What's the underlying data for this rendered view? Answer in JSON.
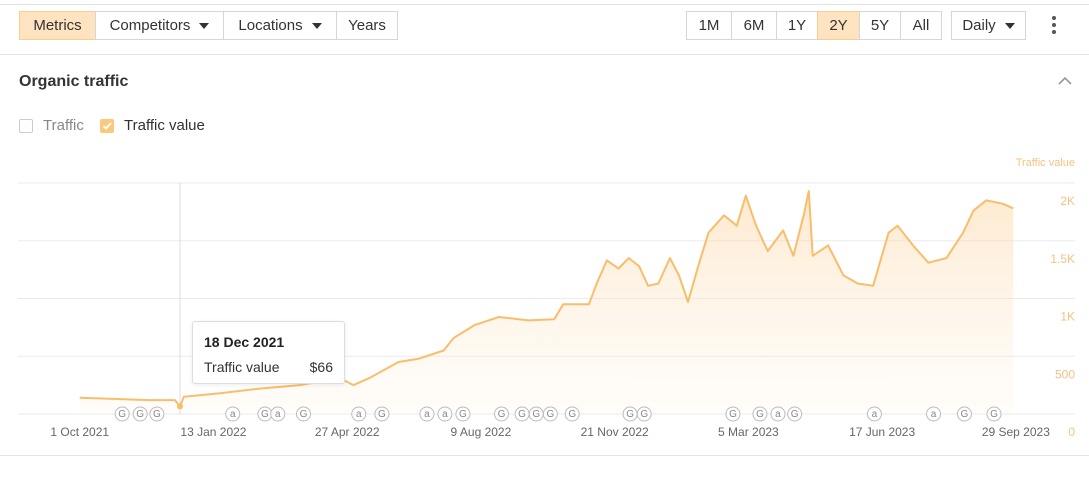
{
  "toolbar": {
    "tabs": [
      {
        "label": "Metrics",
        "active": true,
        "dropdown": false
      },
      {
        "label": "Competitors",
        "active": false,
        "dropdown": true
      },
      {
        "label": "Locations",
        "active": false,
        "dropdown": true
      },
      {
        "label": "Years",
        "active": false,
        "dropdown": false
      }
    ],
    "ranges": [
      {
        "label": "1M",
        "active": false
      },
      {
        "label": "6M",
        "active": false
      },
      {
        "label": "1Y",
        "active": false
      },
      {
        "label": "2Y",
        "active": true
      },
      {
        "label": "5Y",
        "active": false
      },
      {
        "label": "All",
        "active": false
      }
    ],
    "interval": "Daily"
  },
  "section": {
    "title": "Organic traffic"
  },
  "legend": [
    {
      "label": "Traffic",
      "checked": false
    },
    {
      "label": "Traffic value",
      "checked": true
    }
  ],
  "chart_data": {
    "type": "line",
    "y_axis_label": "Traffic value",
    "x": [
      "2021-10-01",
      "2021-11-24",
      "2021-12-14",
      "2021-12-18",
      "2021-12-21",
      "2022-01-18",
      "2022-02-18",
      "2022-03-21",
      "2022-04-21",
      "2022-05-02",
      "2022-05-14",
      "2022-06-06",
      "2022-06-22",
      "2022-07-11",
      "2022-07-19",
      "2022-08-04",
      "2022-08-23",
      "2022-09-15",
      "2022-10-05",
      "2022-10-12",
      "2022-11-01",
      "2022-11-07",
      "2022-11-15",
      "2022-11-24",
      "2022-12-02",
      "2022-12-10",
      "2022-12-17",
      "2022-12-25",
      "2023-01-03",
      "2023-01-10",
      "2023-01-17",
      "2023-01-25",
      "2023-02-02",
      "2023-02-14",
      "2023-02-24",
      "2023-03-03",
      "2023-03-11",
      "2023-03-20",
      "2023-04-01",
      "2023-04-09",
      "2023-04-17",
      "2023-04-21",
      "2023-04-24",
      "2023-05-06",
      "2023-05-18",
      "2023-05-29",
      "2023-06-10",
      "2023-06-22",
      "2023-06-29",
      "2023-07-11",
      "2023-07-23",
      "2023-08-06",
      "2023-08-19",
      "2023-08-27",
      "2023-09-06",
      "2023-09-19",
      "2023-09-27"
    ],
    "series": [
      {
        "name": "Traffic value",
        "color": "#f9bd6c",
        "values": [
          140,
          120,
          120,
          66,
          150,
          180,
          220,
          250,
          310,
          250,
          310,
          450,
          480,
          550,
          660,
          770,
          840,
          810,
          820,
          950,
          950,
          1130,
          1330,
          1260,
          1350,
          1280,
          1110,
          1130,
          1350,
          1200,
          970,
          1280,
          1570,
          1720,
          1630,
          1890,
          1630,
          1410,
          1590,
          1370,
          1720,
          1930,
          1370,
          1460,
          1200,
          1130,
          1110,
          1570,
          1630,
          1460,
          1310,
          1350,
          1570,
          1760,
          1850,
          1820,
          1780
        ]
      }
    ],
    "xlim": [
      "2021-08-14",
      "2023-10-10"
    ],
    "xticks": [
      {
        "value": "2021-10-01",
        "label": "1 Oct 2021"
      },
      {
        "value": "2022-01-13",
        "label": "13 Jan 2022"
      },
      {
        "value": "2022-04-27",
        "label": "27 Apr 2022"
      },
      {
        "value": "2022-08-09",
        "label": "9 Aug 2022"
      },
      {
        "value": "2022-11-21",
        "label": "21 Nov 2022"
      },
      {
        "value": "2023-03-05",
        "label": "5 Mar 2023"
      },
      {
        "value": "2023-06-17",
        "label": "17 Jun 2023"
      },
      {
        "value": "2023-09-29",
        "label": "29 Sep 2023"
      }
    ],
    "ylim": [
      0,
      2000
    ],
    "yticks": [
      0,
      500,
      {
        "value": 1000,
        "label": "1K"
      },
      {
        "value": 1500,
        "label": "1.5K"
      },
      {
        "value": 2000,
        "label": "2K"
      }
    ],
    "grid": true,
    "markers": [
      {
        "label": "G",
        "x": "2021-11-03"
      },
      {
        "label": "G",
        "x": "2021-11-17"
      },
      {
        "label": "G",
        "x": "2021-11-30"
      },
      {
        "label": "a",
        "x": "2022-01-28"
      },
      {
        "label": "G",
        "x": "2022-02-22"
      },
      {
        "label": "a",
        "x": "2022-03-04"
      },
      {
        "label": "G",
        "x": "2022-03-24"
      },
      {
        "label": "a",
        "x": "2022-05-06"
      },
      {
        "label": "G",
        "x": "2022-05-24"
      },
      {
        "label": "a",
        "x": "2022-06-28"
      },
      {
        "label": "a",
        "x": "2022-07-12"
      },
      {
        "label": "G",
        "x": "2022-07-26"
      },
      {
        "label": "G",
        "x": "2022-08-25"
      },
      {
        "label": "G",
        "x": "2022-09-10"
      },
      {
        "label": "G",
        "x": "2022-09-21"
      },
      {
        "label": "G",
        "x": "2022-10-02"
      },
      {
        "label": "G",
        "x": "2022-10-19"
      },
      {
        "label": "G",
        "x": "2022-12-03"
      },
      {
        "label": "G",
        "x": "2022-12-14"
      },
      {
        "label": "G",
        "x": "2023-02-21"
      },
      {
        "label": "G",
        "x": "2023-03-14"
      },
      {
        "label": "a",
        "x": "2023-03-28"
      },
      {
        "label": "G",
        "x": "2023-04-10"
      },
      {
        "label": "a",
        "x": "2023-06-11"
      },
      {
        "label": "a",
        "x": "2023-07-27"
      },
      {
        "label": "G",
        "x": "2023-08-20"
      },
      {
        "label": "G",
        "x": "2023-09-12"
      }
    ],
    "tooltip": {
      "title": "18 Dec 2021",
      "label": "Traffic value",
      "x": "2021-12-18",
      "value": 66,
      "value_label": "$66"
    }
  }
}
